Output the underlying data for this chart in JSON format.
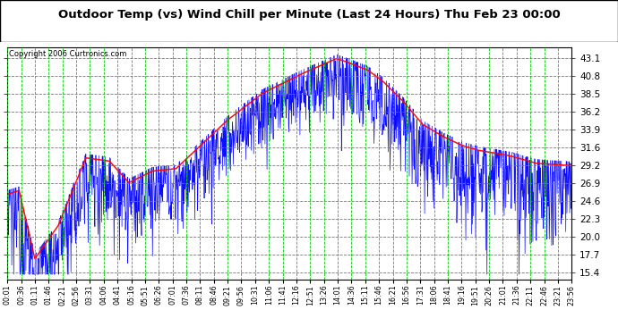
{
  "title": "Outdoor Temp (vs) Wind Chill per Minute (Last 24 Hours) Thu Feb 23 00:00",
  "copyright": "Copyright 2006 Curtronics.com",
  "y_ticks": [
    15.4,
    17.7,
    20.0,
    22.3,
    24.6,
    26.9,
    29.2,
    31.6,
    33.9,
    36.2,
    38.5,
    40.8,
    43.1
  ],
  "ylim": [
    14.5,
    44.5
  ],
  "x_labels": [
    "00:01",
    "00:36",
    "01:11",
    "01:46",
    "02:21",
    "02:56",
    "03:31",
    "04:06",
    "04:41",
    "05:16",
    "05:51",
    "06:26",
    "07:01",
    "07:36",
    "08:11",
    "08:46",
    "09:21",
    "09:56",
    "10:31",
    "11:06",
    "11:41",
    "12:16",
    "12:51",
    "13:26",
    "14:01",
    "14:36",
    "15:11",
    "15:46",
    "16:21",
    "16:56",
    "17:31",
    "18:06",
    "18:41",
    "19:16",
    "19:51",
    "20:26",
    "21:01",
    "21:36",
    "22:11",
    "22:46",
    "23:21",
    "23:56"
  ],
  "background_color": "#ffffff",
  "plot_bg_color": "#ffffff",
  "grid_color": "#00cc00",
  "title_color": "#000000",
  "temp_color": "#ff0000",
  "windchill_color": "#0000ff",
  "border_color": "#000000",
  "n_points": 1440,
  "temp_key_x": [
    0,
    30,
    70,
    130,
    200,
    260,
    310,
    370,
    430,
    560,
    650,
    750,
    840,
    870,
    920,
    960,
    1010,
    1060,
    1110,
    1160,
    1200,
    1280,
    1350,
    1440
  ],
  "temp_key_y": [
    25.5,
    26.0,
    17.2,
    21.5,
    30.2,
    29.8,
    27.0,
    28.5,
    28.8,
    35.0,
    38.5,
    41.0,
    43.0,
    42.5,
    41.5,
    40.0,
    37.5,
    34.5,
    33.0,
    31.8,
    31.2,
    30.5,
    29.5,
    29.2
  ]
}
